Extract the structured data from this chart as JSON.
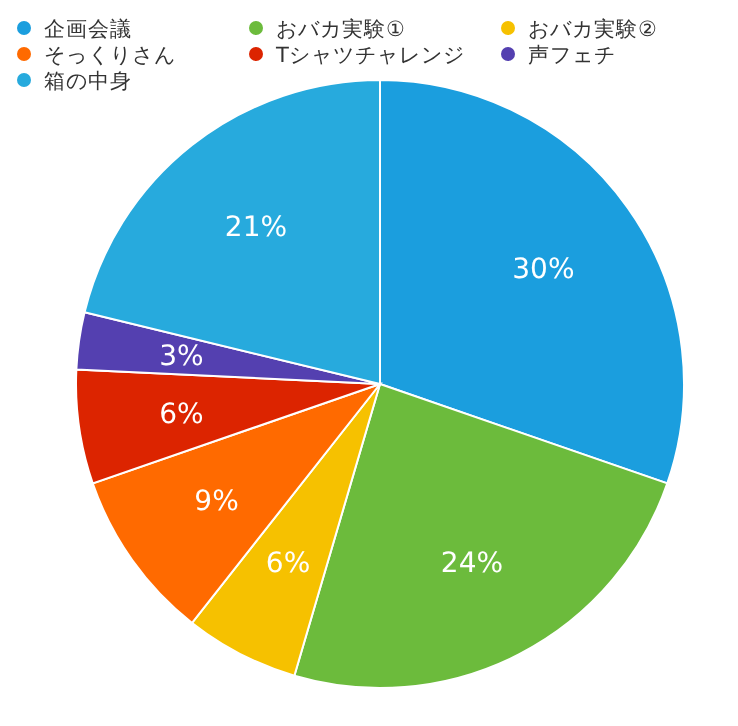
{
  "chart_data": {
    "type": "pie",
    "legend": "top",
    "categories": [
      "企画会議",
      "おバカ実験①",
      "おバカ実験②",
      "そっくりさん",
      "Tシャツチャレンジ",
      "声フェチ",
      "箱の中身"
    ],
    "values": [
      30,
      24,
      6,
      9,
      6,
      3,
      21
    ],
    "colors": [
      "#1b9ede",
      "#6cbb3c",
      "#f6c100",
      "#ff6a00",
      "#dc2400",
      "#5440b0",
      "#27aadd"
    ],
    "value_labels": [
      "30%",
      "24%",
      "6%",
      "9%",
      "6%",
      "3%",
      "21%"
    ]
  }
}
